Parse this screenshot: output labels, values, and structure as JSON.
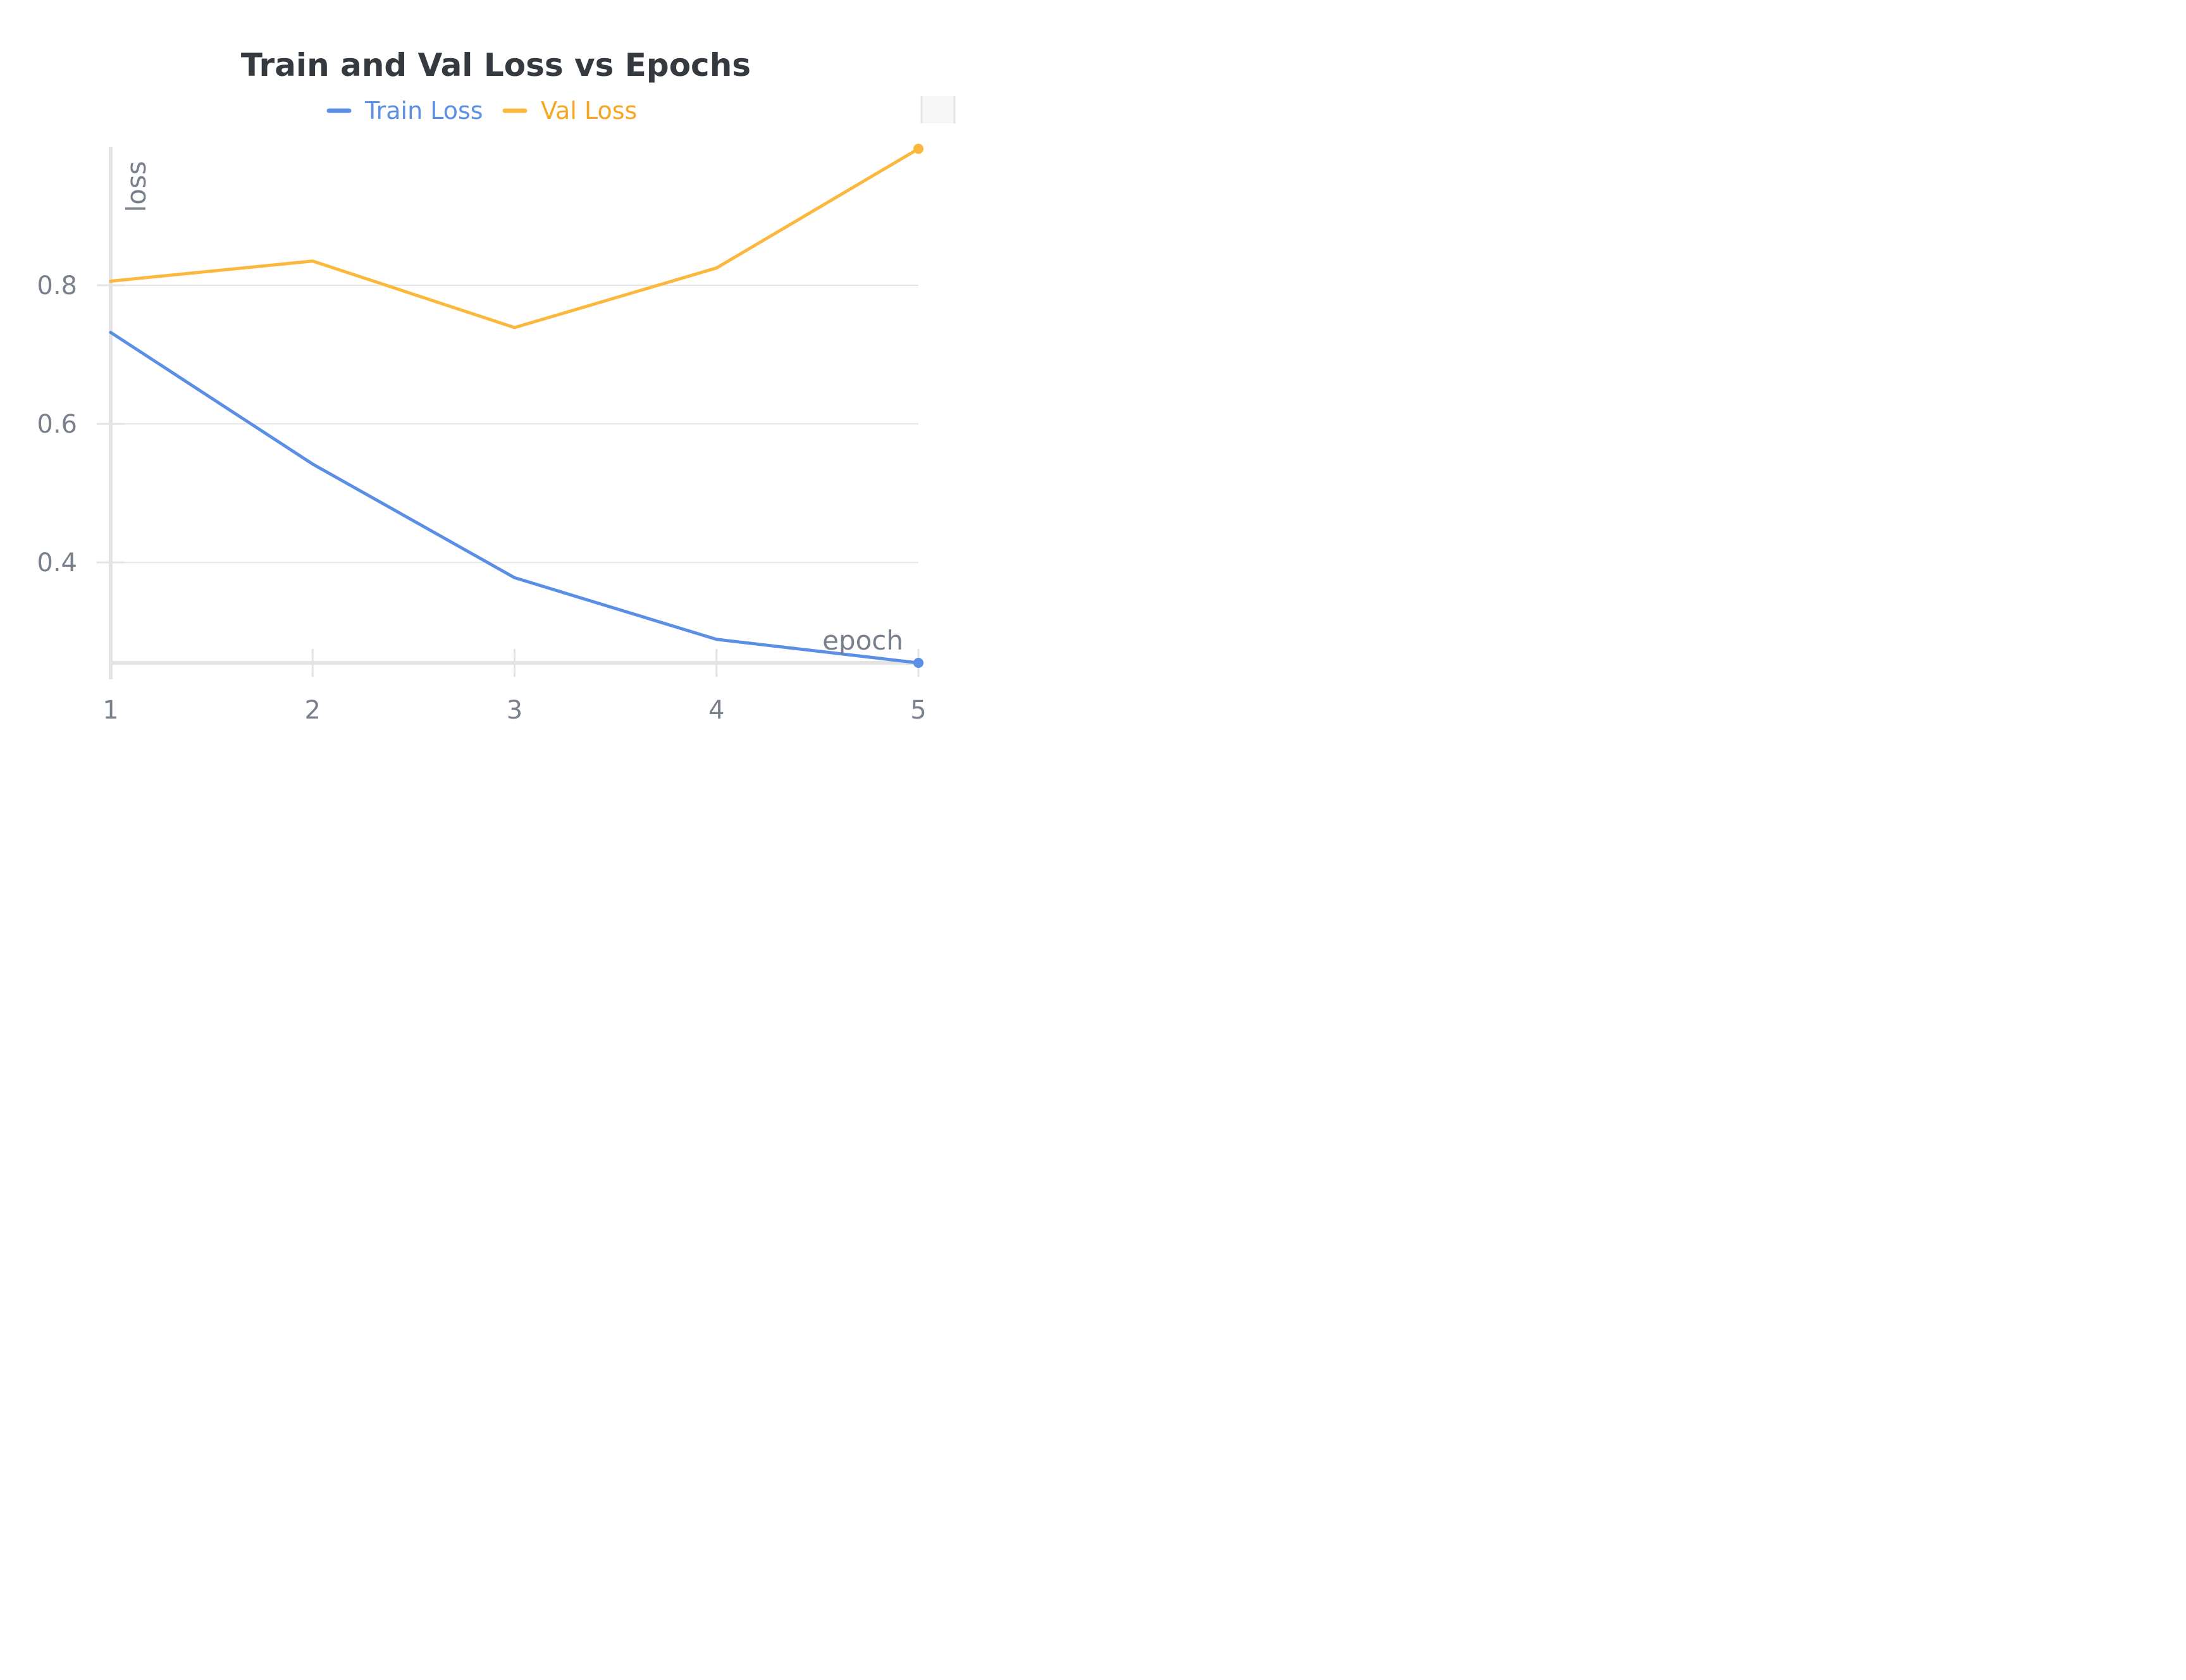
{
  "chart_data": {
    "type": "line",
    "title": "Train and Val Loss vs Epochs",
    "xlabel": "epoch",
    "ylabel": "loss",
    "x": [
      1,
      2,
      3,
      4,
      5
    ],
    "xlim": [
      1,
      5
    ],
    "ylim": [
      0.255,
      1.0
    ],
    "xticks": [
      "1",
      "2",
      "3",
      "4",
      "5"
    ],
    "yticks": [
      "0.4",
      "0.6",
      "0.8"
    ],
    "ytick_values": [
      0.4,
      0.6,
      0.8
    ],
    "grid": true,
    "legend_position": "top-center",
    "series": [
      {
        "name": "Train Loss",
        "color": "#5b8fe5",
        "values": [
          0.732,
          0.542,
          0.378,
          0.289,
          0.255
        ]
      },
      {
        "name": "Val Loss",
        "color": "#fbb83d",
        "values": [
          0.806,
          0.835,
          0.739,
          0.825,
          0.997
        ]
      }
    ],
    "legend_text_colors": [
      "#5b8fe5",
      "#f5a623"
    ]
  }
}
